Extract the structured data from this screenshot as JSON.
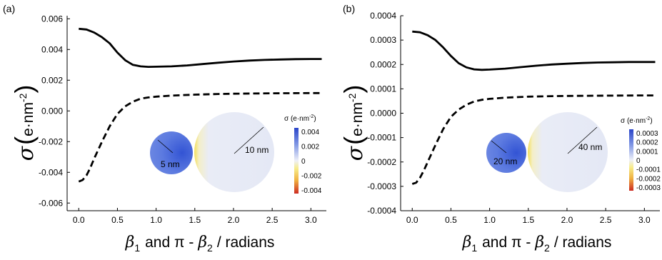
{
  "chart_data": [
    {
      "panel_label": "(a)",
      "type": "line",
      "xlabel_parts": {
        "beta1": "β",
        "sub1": "1",
        "mid": "and π -",
        "beta2": "β",
        "sub2": "2",
        "unit": "/ radians"
      },
      "ylabel_parts": {
        "sym": "σ",
        "units": "e·nm",
        "exp": "-2"
      },
      "xlim": [
        -0.15,
        3.2
      ],
      "ylim": [
        -0.0065,
        0.0062
      ],
      "xticks": [
        0.0,
        0.5,
        1.0,
        1.5,
        2.0,
        2.5,
        3.0
      ],
      "xtick_labels": [
        "0.0",
        "0.5",
        "1.0",
        "1.5",
        "2.0",
        "2.5",
        "3.0"
      ],
      "yticks": [
        -0.006,
        -0.004,
        -0.002,
        0.0,
        0.002,
        0.004,
        0.006
      ],
      "ytick_labels": [
        "-0.006",
        "-0.004",
        "-0.002",
        "0.000",
        "0.002",
        "0.004",
        "0.006"
      ],
      "series": [
        {
          "style": "solid",
          "x": [
            0.0,
            0.1,
            0.2,
            0.3,
            0.4,
            0.5,
            0.6,
            0.7,
            0.8,
            0.9,
            1.0,
            1.2,
            1.4,
            1.6,
            1.8,
            2.0,
            2.2,
            2.4,
            2.6,
            2.8,
            3.0,
            3.14
          ],
          "y": [
            0.00535,
            0.0053,
            0.0051,
            0.0048,
            0.0044,
            0.0038,
            0.0033,
            0.003,
            0.0029,
            0.00287,
            0.00288,
            0.0029,
            0.00296,
            0.00305,
            0.00314,
            0.00322,
            0.00328,
            0.00332,
            0.00335,
            0.00337,
            0.00338,
            0.00338
          ]
        },
        {
          "style": "dashed",
          "x": [
            0.0,
            0.05,
            0.1,
            0.15,
            0.2,
            0.3,
            0.4,
            0.5,
            0.6,
            0.7,
            0.8,
            0.9,
            1.0,
            1.2,
            1.5,
            1.8,
            2.0,
            2.5,
            3.0,
            3.14
          ],
          "y": [
            -0.0046,
            -0.0045,
            -0.0042,
            -0.0037,
            -0.0031,
            -0.002,
            -0.001,
            -0.0002,
            0.0003,
            0.0006,
            0.0008,
            0.00088,
            0.00093,
            0.001,
            0.00106,
            0.0011,
            0.00112,
            0.00115,
            0.00116,
            0.00116
          ]
        }
      ],
      "inset": {
        "small_radius_label": "5 nm",
        "large_radius_label": "10 nm",
        "colorbar_title": "σ (e·nm",
        "colorbar_exp": "-2",
        "colorbar_close": ")",
        "colorbar_labels": [
          "0.004",
          "0.002",
          "0",
          "-0.002",
          "-0.004"
        ]
      }
    },
    {
      "panel_label": "(b)",
      "type": "line",
      "xlabel_parts": {
        "beta1": "β",
        "sub1": "1",
        "mid": "and π -",
        "beta2": "β",
        "sub2": "2",
        "unit": "/ radians"
      },
      "ylabel_parts": {
        "sym": "σ",
        "units": "e·nm",
        "exp": "-2"
      },
      "xlim": [
        -0.15,
        3.2
      ],
      "ylim": [
        -0.0004,
        0.0004
      ],
      "xticks": [
        0.0,
        0.5,
        1.0,
        1.5,
        2.0,
        2.5,
        3.0
      ],
      "xtick_labels": [
        "0.0",
        "0.5",
        "1.0",
        "1.5",
        "2.0",
        "2.5",
        "3.0"
      ],
      "yticks": [
        -0.0004,
        -0.0003,
        -0.0002,
        -0.0001,
        0.0,
        0.0001,
        0.0002,
        0.0003,
        0.0004
      ],
      "ytick_labels": [
        "-0.0004",
        "-0.0003",
        "-0.0002",
        "-0.0001",
        "0.0000",
        "0.0001",
        "0.0002",
        "0.0003",
        "0.0004"
      ],
      "series": [
        {
          "style": "solid",
          "x": [
            0.0,
            0.1,
            0.2,
            0.3,
            0.4,
            0.5,
            0.6,
            0.7,
            0.8,
            0.9,
            1.0,
            1.2,
            1.4,
            1.6,
            1.8,
            2.0,
            2.2,
            2.4,
            2.6,
            2.8,
            3.0,
            3.14
          ],
          "y": [
            0.000335,
            0.000332,
            0.00032,
            0.0003,
            0.00027,
            0.000235,
            0.000205,
            0.000188,
            0.00018,
            0.000178,
            0.000179,
            0.000183,
            0.000189,
            0.000195,
            0.0002,
            0.000203,
            0.000206,
            0.000208,
            0.000209,
            0.00021,
            0.00021,
            0.00021
          ]
        },
        {
          "style": "dashed",
          "x": [
            0.0,
            0.05,
            0.1,
            0.15,
            0.2,
            0.3,
            0.4,
            0.5,
            0.6,
            0.7,
            0.8,
            0.9,
            1.0,
            1.2,
            1.5,
            1.8,
            2.0,
            2.5,
            3.0,
            3.14
          ],
          "y": [
            -0.00029,
            -0.000285,
            -0.000265,
            -0.000235,
            -0.0002,
            -0.00013,
            -6.5e-05,
            -1.5e-05,
            1.5e-05,
            3.5e-05,
            4.8e-05,
            5.5e-05,
            5.9e-05,
            6.4e-05,
            6.8e-05,
            7e-05,
            7.1e-05,
            7.2e-05,
            7.3e-05,
            7.3e-05
          ]
        }
      ],
      "inset": {
        "small_radius_label": "20 nm",
        "large_radius_label": "40 nm",
        "colorbar_title": "σ (e·nm",
        "colorbar_exp": "-2",
        "colorbar_close": ")",
        "colorbar_labels": [
          "0.0003",
          "0.0002",
          "0.0001",
          "0",
          "-0.0001",
          "-0.0002",
          "-0.0003"
        ]
      }
    }
  ],
  "colors": {
    "line": "#000000",
    "blue_dark": "#2a45c9",
    "blue_mid": "#5a78dd",
    "blue_light": "#e6e9f6",
    "yellow": "#f5e56a",
    "red": "#d9302a"
  }
}
